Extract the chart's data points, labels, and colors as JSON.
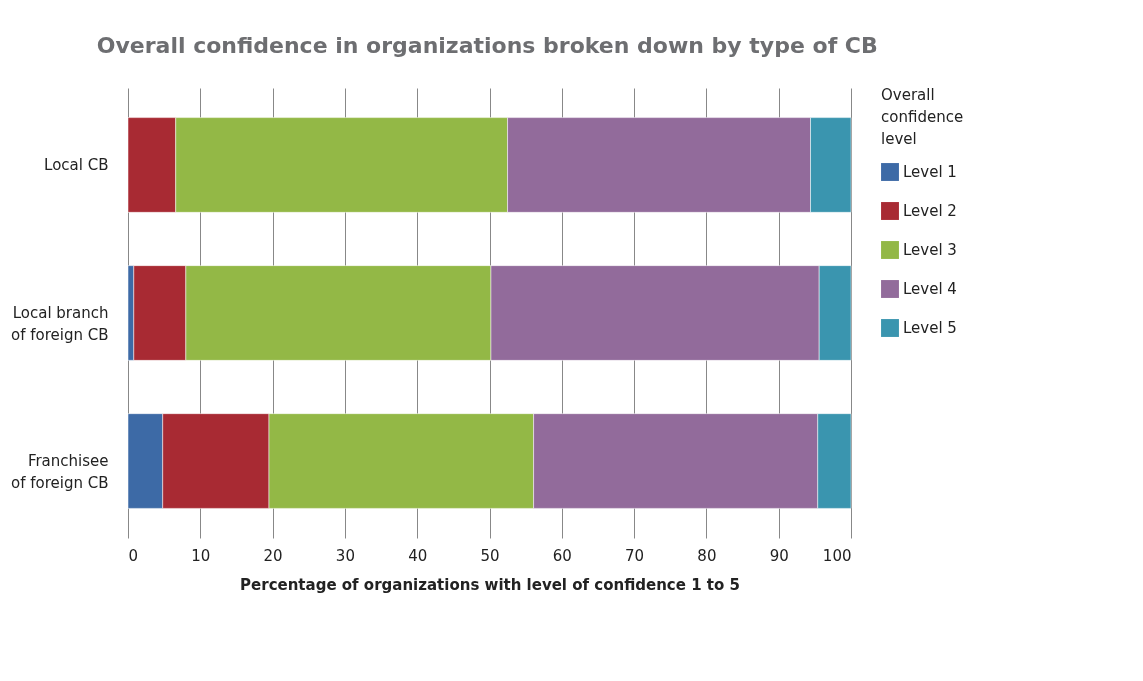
{
  "chart_data": {
    "type": "bar",
    "orientation": "horizontal",
    "stacked": true,
    "title": "Overall confidence in organizations broken down by type of CB",
    "xlabel": "Percentage of organizations with level of confidence 1 to 5",
    "legend_title": "Overall confidence level",
    "categories": [
      "Local CB",
      "Local branch of foreign CB",
      "Franchisee of foreign CB"
    ],
    "series": [
      {
        "name": "Level 1",
        "color": "#3d6aa6",
        "values": [
          0,
          0.8,
          4.8
        ]
      },
      {
        "name": "Level 2",
        "color": "#a82a33",
        "values": [
          6.6,
          7.2,
          14.7
        ]
      },
      {
        "name": "Level 3",
        "color": "#93b846",
        "values": [
          45.9,
          42.2,
          36.6
        ]
      },
      {
        "name": "Level 4",
        "color": "#926b9b",
        "values": [
          41.9,
          45.4,
          39.3
        ]
      },
      {
        "name": "Level 5",
        "color": "#3a95af",
        "values": [
          5.6,
          4.4,
          4.6
        ]
      }
    ],
    "xlim": [
      0,
      100
    ],
    "xticks": [
      0,
      10,
      20,
      30,
      40,
      50,
      60,
      70,
      80,
      90,
      100
    ],
    "grid": "x",
    "legend": "right"
  }
}
